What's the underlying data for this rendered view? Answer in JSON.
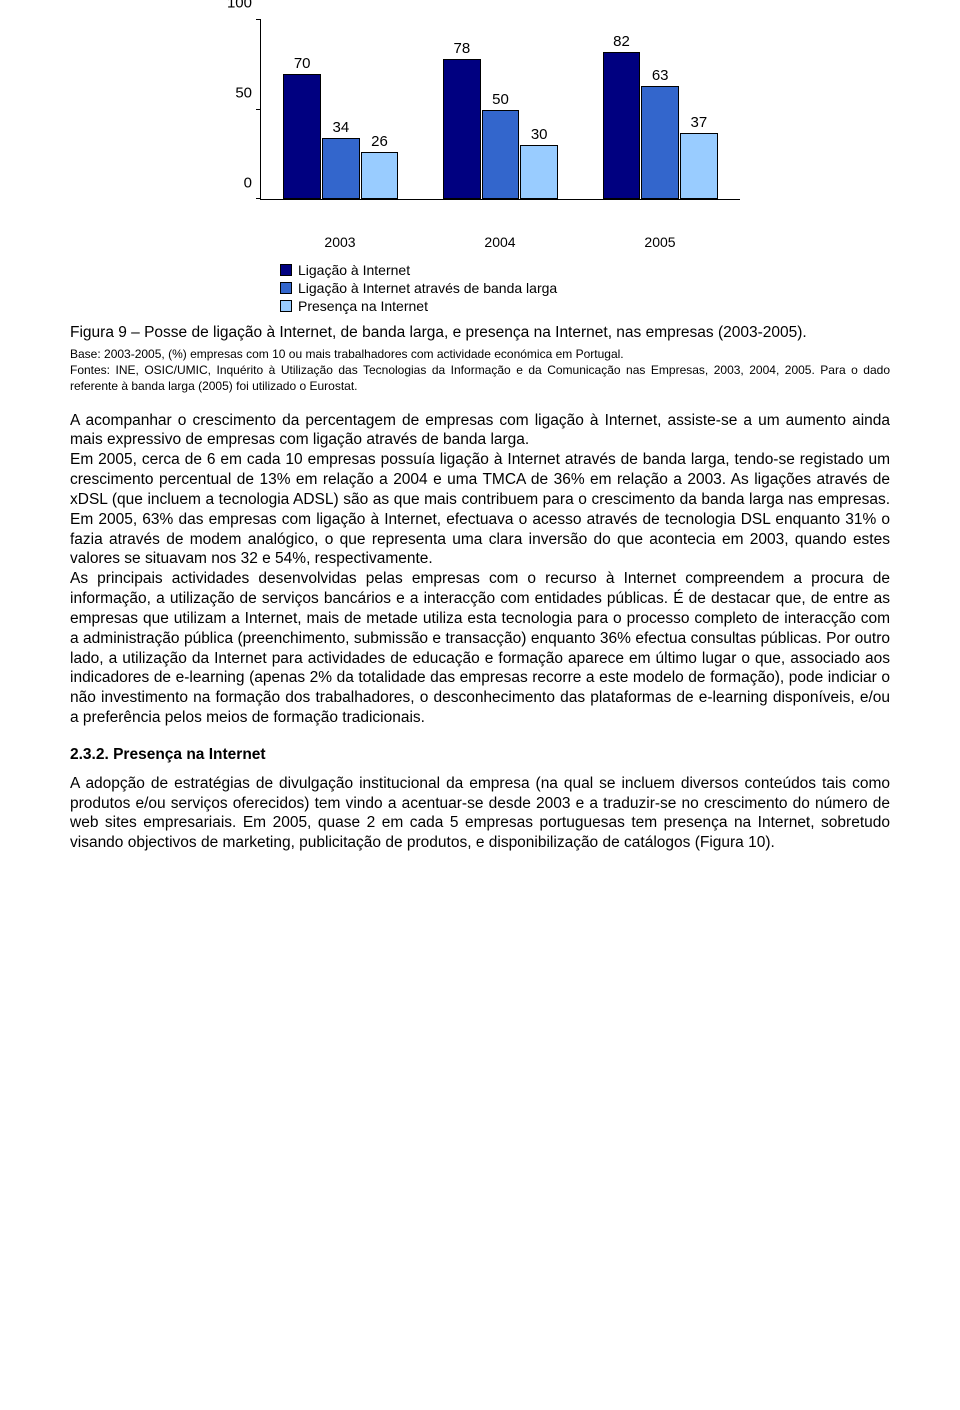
{
  "chart": {
    "type": "bar",
    "ymax": 100,
    "yticks": [
      0,
      50,
      100
    ],
    "categories": [
      "2003",
      "2004",
      "2005"
    ],
    "series": [
      {
        "label": "Ligação à Internet",
        "color": "#000080"
      },
      {
        "label": "Ligação à Internet através de banda larga",
        "color": "#3366cc"
      },
      {
        "label": "Presença na Internet",
        "color": "#99ccff"
      }
    ],
    "data": [
      [
        70,
        78,
        82
      ],
      [
        34,
        50,
        63
      ],
      [
        26,
        30,
        37
      ]
    ],
    "background": "#ffffff",
    "axis_color": "#000000",
    "label_fontsize": 15
  },
  "caption": "Figura 9 – Posse de ligação à Internet, de banda larga, e presença na Internet, nas empresas (2003-2005).",
  "source": "Base: 2003-2005, (%) empresas com 10 ou mais trabalhadores com actividade económica em Portugal.\nFontes: INE, OSIC/UMIC, Inquérito à Utilização das Tecnologias da Informação e da Comunicação nas Empresas, 2003, 2004, 2005. Para o dado referente à banda larga (2005) foi utilizado o Eurostat.",
  "paragraph1": "A acompanhar o crescimento da percentagem de empresas com ligação à Internet, assiste-se a um aumento ainda mais expressivo de empresas com ligação através de banda larga.\nEm 2005, cerca de 6 em cada 10 empresas possuía ligação à Internet através de banda larga, tendo-se registado um crescimento percentual de 13% em relação a 2004 e uma TMCA de 36% em relação a 2003. As ligações através de xDSL (que incluem a tecnologia ADSL) são as que mais contribuem para o crescimento da banda larga nas empresas. Em 2005, 63% das empresas com ligação à Internet, efectuava o acesso através de tecnologia DSL enquanto 31% o fazia através de modem analógico, o que representa uma clara inversão do que acontecia em 2003, quando estes valores se situavam nos 32 e 54%, respectivamente.\nAs principais actividades desenvolvidas pelas empresas com o recurso à Internet compreendem a procura de informação, a utilização de serviços bancários e a interacção com entidades públicas. É de destacar que, de entre as empresas que utilizam a Internet, mais de metade utiliza esta tecnologia para o processo completo de interacção com a administração pública (preenchimento, submissão e transacção) enquanto 36% efectua consultas públicas. Por outro lado, a utilização da Internet para actividades de educação e formação aparece em último lugar o que, associado aos indicadores de e-learning (apenas 2% da totalidade das empresas recorre a este modelo de formação), pode indiciar o não investimento na formação dos trabalhadores, o desconhecimento das plataformas de e-learning disponíveis, e/ou a preferência pelos meios de formação tradicionais.",
  "section": {
    "number": "2.3.2.",
    "title": "Presença na Internet"
  },
  "paragraph2": "A adopção de estratégias de divulgação institucional da empresa (na qual se incluem diversos conteúdos tais como produtos e/ou serviços oferecidos) tem vindo a acentuar-se desde 2003 e a traduzir-se no crescimento do número de web sites empresariais. Em 2005, quase 2 em cada 5 empresas portuguesas tem presença na Internet, sobretudo visando objectivos de marketing, publicitação de produtos, e disponibilização de catálogos (Figura 10)."
}
